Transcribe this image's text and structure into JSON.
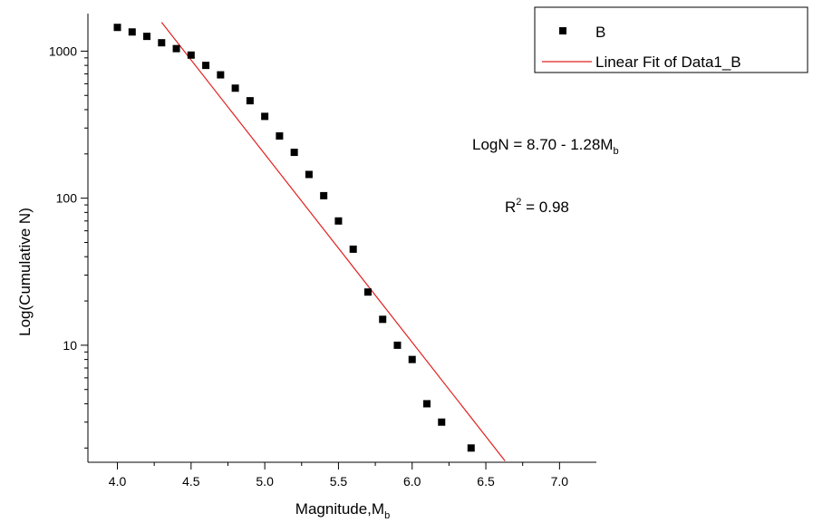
{
  "chart_data": {
    "type": "scatter",
    "xlabel": "Magnitude,M",
    "xlabel_sub": "b",
    "ylabel": "Log(Cumulative N)",
    "xlim": [
      3.8,
      7.25
    ],
    "ylim": [
      1.6,
      1800
    ],
    "yscale": "log",
    "x_ticks": [
      4.0,
      4.5,
      5.0,
      5.5,
      6.0,
      6.5,
      7.0
    ],
    "x_tick_labels": [
      "4.0",
      "4.5",
      "5.0",
      "5.5",
      "6.0",
      "6.5",
      "7.0"
    ],
    "y_ticks": [
      10,
      100,
      1000
    ],
    "y_tick_labels": [
      "10",
      "100",
      "1000"
    ],
    "grid": false,
    "legend_position": "top-right",
    "series": [
      {
        "name": "B",
        "marker": "square",
        "color": "#000000",
        "x": [
          4.0,
          4.1,
          4.2,
          4.3,
          4.4,
          4.5,
          4.6,
          4.7,
          4.8,
          4.9,
          5.0,
          5.1,
          5.2,
          5.3,
          5.4,
          5.5,
          5.6,
          5.7,
          5.8,
          5.9,
          6.0,
          6.1,
          6.2,
          6.4
        ],
        "y": [
          1450,
          1350,
          1260,
          1140,
          1040,
          940,
          800,
          690,
          560,
          460,
          360,
          265,
          205,
          145,
          104,
          70,
          45,
          23,
          15,
          10,
          8,
          4,
          3,
          2
        ]
      },
      {
        "name": "Linear Fit of Data1_B",
        "type": "line",
        "color": "#e02020",
        "intercept": 8.7,
        "slope": -1.28,
        "x_range": [
          4.3,
          6.63
        ]
      }
    ],
    "annotations": [
      {
        "text": "LogN = 8.70 - 1.28M",
        "sub": "b"
      },
      {
        "text": "R",
        "sup": "2",
        "after": " = 0.98"
      }
    ]
  }
}
